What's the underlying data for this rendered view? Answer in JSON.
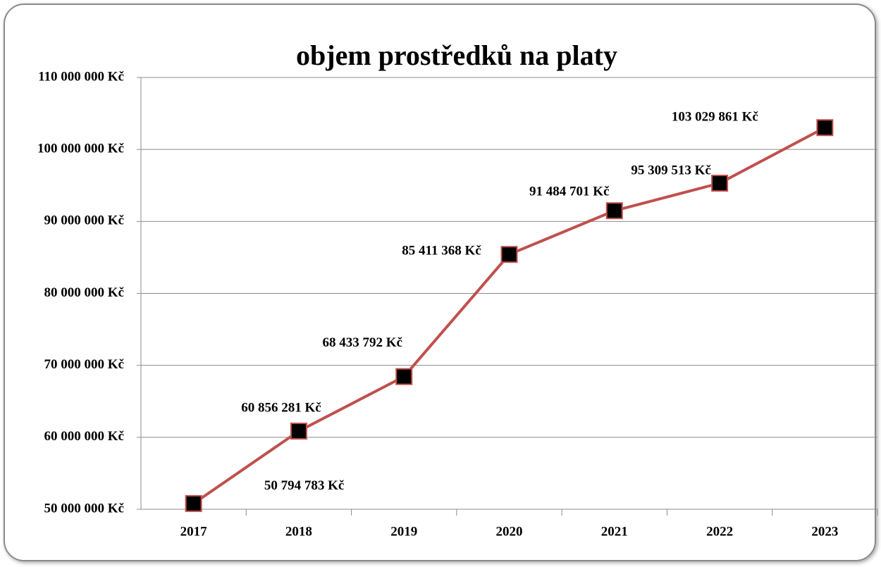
{
  "chart_data": {
    "type": "line",
    "title": "objem prostředků na platy",
    "categories": [
      "2017",
      "2018",
      "2019",
      "2020",
      "2021",
      "2022",
      "2023"
    ],
    "series": [
      {
        "color": "#c0504d",
        "marker_color": "#000000",
        "values": [
          50794783,
          60856281,
          68433792,
          85411368,
          91484701,
          95309513,
          103029861
        ],
        "value_labels": [
          "50 794 783 Kč",
          "60 856 281 Kč",
          "68 433 792 Kč",
          "85 411 368 Kč",
          "91 484 701 Kč",
          "95 309 513 Kč",
          "103 029 861 Kč"
        ]
      }
    ],
    "ylim": [
      50000000,
      110000000
    ],
    "yticks": [
      {
        "value": 50000000,
        "label": "50 000 000 Kč"
      },
      {
        "value": 60000000,
        "label": "60 000 000 Kč"
      },
      {
        "value": 70000000,
        "label": "70 000 000 Kč"
      },
      {
        "value": 80000000,
        "label": "80 000 000 Kč"
      },
      {
        "value": 90000000,
        "label": "90 000 000 Kč"
      },
      {
        "value": 100000000,
        "label": "100 000 000 Kč"
      },
      {
        "value": 110000000,
        "label": "110 000 000 Kč"
      }
    ],
    "grid": true
  }
}
